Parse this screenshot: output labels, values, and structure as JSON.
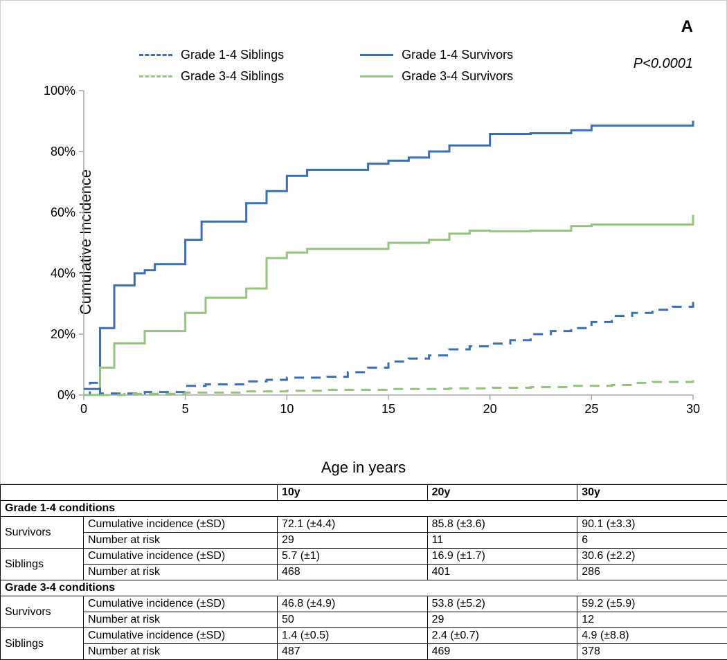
{
  "panel_label": "A",
  "p_value": "P<0.0001",
  "legend": {
    "s1": "Grade 1-4 Siblings",
    "s2": "Grade 1-4 Survivors",
    "s3": "Grade 3-4 Siblings",
    "s4": "Grade 3-4 Survivors"
  },
  "colors": {
    "blue": "#3a6fb0",
    "green": "#94c47d",
    "axis": "#a6a6a6",
    "text": "#000000",
    "panel_border": "#cfcfcf",
    "background": "#ffffff"
  },
  "chart": {
    "type": "line-step",
    "x_title": "Age in years",
    "y_title": "Cumulative Incidence",
    "xlim": [
      0,
      30
    ],
    "ylim": [
      0,
      100
    ],
    "x_ticks": [
      0,
      5,
      10,
      15,
      20,
      25,
      30
    ],
    "y_ticks": [
      0,
      20,
      40,
      60,
      80,
      100
    ],
    "y_tick_suffix": "%",
    "line_width": 3,
    "dash_pattern": "14 10",
    "series": {
      "grade14_survivors": {
        "color_key": "blue",
        "dashed": false,
        "points": [
          [
            0,
            2
          ],
          [
            0.8,
            22
          ],
          [
            1.5,
            36
          ],
          [
            2.0,
            36
          ],
          [
            2.5,
            40
          ],
          [
            3,
            41
          ],
          [
            3.5,
            43
          ],
          [
            4,
            43
          ],
          [
            5,
            51
          ],
          [
            5.8,
            57
          ],
          [
            7,
            57
          ],
          [
            8,
            63
          ],
          [
            9,
            67
          ],
          [
            10,
            72
          ],
          [
            11,
            74
          ],
          [
            13,
            74
          ],
          [
            14,
            76
          ],
          [
            15,
            77
          ],
          [
            16,
            78
          ],
          [
            17,
            80
          ],
          [
            18,
            82
          ],
          [
            20,
            85.8
          ],
          [
            22,
            86
          ],
          [
            24,
            87
          ],
          [
            25,
            88.5
          ],
          [
            27,
            88.5
          ],
          [
            29,
            88.5
          ],
          [
            30,
            90.1
          ]
        ]
      },
      "grade34_survivors": {
        "color_key": "green",
        "dashed": false,
        "points": [
          [
            0,
            0
          ],
          [
            0.8,
            9
          ],
          [
            1.5,
            17
          ],
          [
            2.5,
            17
          ],
          [
            3,
            21
          ],
          [
            4,
            21
          ],
          [
            5,
            27
          ],
          [
            6,
            32
          ],
          [
            7,
            32
          ],
          [
            8,
            35
          ],
          [
            9,
            45
          ],
          [
            10,
            46.8
          ],
          [
            11,
            48
          ],
          [
            14,
            48
          ],
          [
            15,
            50
          ],
          [
            16,
            50
          ],
          [
            17,
            51
          ],
          [
            18,
            53
          ],
          [
            19,
            54
          ],
          [
            20,
            53.8
          ],
          [
            22,
            54
          ],
          [
            24,
            55.5
          ],
          [
            25,
            56
          ],
          [
            28,
            56
          ],
          [
            29,
            56
          ],
          [
            30,
            59.2
          ]
        ]
      },
      "grade14_siblings": {
        "color_key": "blue",
        "dashed": true,
        "points": [
          [
            0,
            0
          ],
          [
            0.3,
            4
          ],
          [
            0.8,
            0.5
          ],
          [
            2,
            0.5
          ],
          [
            3,
            1
          ],
          [
            5,
            3
          ],
          [
            6,
            3.5
          ],
          [
            8,
            4.5
          ],
          [
            9,
            5
          ],
          [
            10,
            5.7
          ],
          [
            12,
            6
          ],
          [
            13,
            7.5
          ],
          [
            14,
            9
          ],
          [
            15,
            11
          ],
          [
            16,
            12
          ],
          [
            17,
            13
          ],
          [
            18,
            15
          ],
          [
            19,
            16
          ],
          [
            20,
            16.9
          ],
          [
            21,
            18
          ],
          [
            22,
            20
          ],
          [
            23,
            21
          ],
          [
            24,
            22
          ],
          [
            25,
            24
          ],
          [
            26,
            26
          ],
          [
            27,
            27
          ],
          [
            28,
            28
          ],
          [
            29,
            29
          ],
          [
            30,
            30.6
          ]
        ]
      },
      "grade34_siblings": {
        "color_key": "green",
        "dashed": true,
        "points": [
          [
            0,
            0
          ],
          [
            2,
            0.4
          ],
          [
            5,
            0.8
          ],
          [
            8,
            1.2
          ],
          [
            10,
            1.4
          ],
          [
            12,
            1.7
          ],
          [
            15,
            2
          ],
          [
            18,
            2.2
          ],
          [
            20,
            2.4
          ],
          [
            22,
            2.6
          ],
          [
            24,
            3
          ],
          [
            26,
            3.3
          ],
          [
            27,
            4
          ],
          [
            28,
            4.3
          ],
          [
            30,
            4.9
          ]
        ]
      }
    }
  },
  "table": {
    "time_headers": [
      "10y",
      "20y",
      "30y"
    ],
    "row_group_label": "",
    "metric_ci": "Cumulative incidence (±SD)",
    "metric_nar": "Number at risk",
    "group_survivors": "Survivors",
    "group_siblings": "Siblings",
    "section_g14": "Grade 1-4 conditions",
    "section_g34": "Grade 3-4 conditions",
    "g14": {
      "survivors": {
        "ci": [
          "72.1 (±4.4)",
          "85.8 (±3.6)",
          "90.1 (±3.3)"
        ],
        "nar": [
          "29",
          "11",
          "6"
        ]
      },
      "siblings": {
        "ci": [
          "5.7 (±1)",
          "16.9 (±1.7)",
          "30.6 (±2.2)"
        ],
        "nar": [
          "468",
          "401",
          "286"
        ]
      }
    },
    "g34": {
      "survivors": {
        "ci": [
          "46.8 (±4.9)",
          "53.8 (±5.2)",
          "59.2 (±5.9)"
        ],
        "nar": [
          "50",
          "29",
          "12"
        ]
      },
      "siblings": {
        "ci": [
          "1.4 (±0.5)",
          "2.4 (±0.7)",
          "4.9 (±8.8)"
        ],
        "nar": [
          "487",
          "469",
          "378"
        ]
      }
    }
  }
}
